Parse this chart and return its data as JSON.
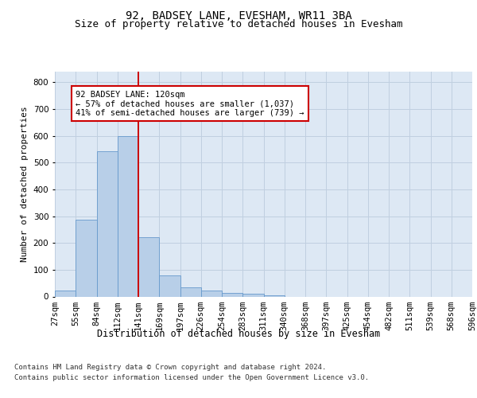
{
  "title1": "92, BADSEY LANE, EVESHAM, WR11 3BA",
  "title2": "Size of property relative to detached houses in Evesham",
  "xlabel": "Distribution of detached houses by size in Evesham",
  "ylabel": "Number of detached properties",
  "bar_values": [
    22,
    288,
    543,
    598,
    222,
    80,
    33,
    22,
    12,
    10,
    5,
    0,
    0,
    0,
    0,
    0,
    0,
    0,
    0,
    0
  ],
  "bin_labels": [
    "27sqm",
    "55sqm",
    "84sqm",
    "112sqm",
    "141sqm",
    "169sqm",
    "197sqm",
    "226sqm",
    "254sqm",
    "283sqm",
    "311sqm",
    "340sqm",
    "368sqm",
    "397sqm",
    "425sqm",
    "454sqm",
    "482sqm",
    "511sqm",
    "539sqm",
    "568sqm",
    "596sqm"
  ],
  "bar_color": "#b8cfe8",
  "bar_edge_color": "#6699cc",
  "grid_color": "#c0cfe0",
  "bg_color": "#dde8f4",
  "vline_color": "#cc0000",
  "annotation_text": "92 BADSEY LANE: 120sqm\n← 57% of detached houses are smaller (1,037)\n41% of semi-detached houses are larger (739) →",
  "annotation_box_color": "#cc0000",
  "ylim": [
    0,
    840
  ],
  "yticks": [
    0,
    100,
    200,
    300,
    400,
    500,
    600,
    700,
    800
  ],
  "footer_line1": "Contains HM Land Registry data © Crown copyright and database right 2024.",
  "footer_line2": "Contains public sector information licensed under the Open Government Licence v3.0.",
  "title1_fontsize": 10,
  "title2_fontsize": 9,
  "xlabel_fontsize": 8.5,
  "ylabel_fontsize": 8,
  "tick_fontsize": 7.5,
  "annotation_fontsize": 7.5,
  "footer_fontsize": 6.5
}
